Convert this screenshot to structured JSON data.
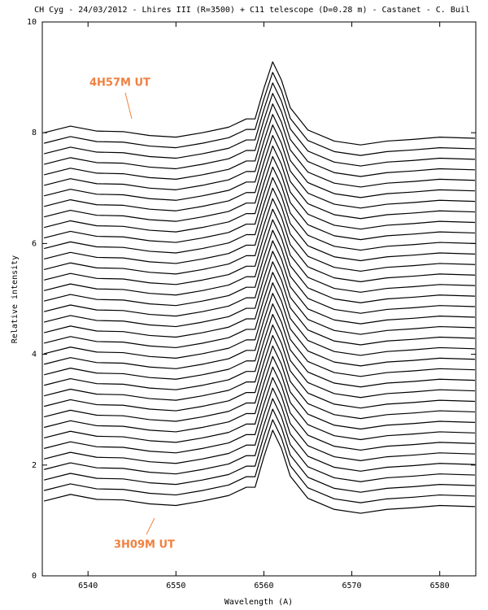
{
  "chart_data": {
    "type": "line",
    "title": "CH Cyg - 24/03/2012 - Lhires III (R=3500) + C11 telescope (D=0.28 m) - Castanet - C. Buil",
    "xlabel": "Wavelength (A)",
    "ylabel": "Relative intensity",
    "annotations": [
      "4H57M UT",
      "3H09M UT"
    ],
    "color": "#000000",
    "xlim": [
      6534.8,
      6584.1
    ],
    "ylim": [
      0,
      10
    ],
    "xticks": [
      6540,
      6550,
      6560,
      6570,
      6580
    ],
    "yticks": [
      0,
      2,
      4,
      6,
      8,
      10
    ],
    "x": [
      6535,
      6538,
      6541,
      6544,
      6547,
      6550,
      6553,
      6556,
      6558,
      6559,
      6560,
      6561,
      6562,
      6563,
      6565,
      6568,
      6571,
      6574,
      6577,
      6580,
      6584
    ],
    "series": [
      {
        "values": [
          1.35,
          1.47,
          1.38,
          1.37,
          1.3,
          1.27,
          1.35,
          1.45,
          1.6,
          1.6,
          2.15,
          2.63,
          2.3,
          1.8,
          1.4,
          1.2,
          1.13,
          1.2,
          1.23,
          1.27,
          1.25
        ]
      },
      {
        "values": [
          1.54,
          1.66,
          1.57,
          1.56,
          1.49,
          1.46,
          1.54,
          1.64,
          1.79,
          1.79,
          2.34,
          2.82,
          2.49,
          1.99,
          1.59,
          1.39,
          1.32,
          1.39,
          1.42,
          1.46,
          1.44
        ]
      },
      {
        "values": [
          1.73,
          1.85,
          1.76,
          1.75,
          1.68,
          1.65,
          1.73,
          1.83,
          1.98,
          1.98,
          2.53,
          3.01,
          2.68,
          2.18,
          1.78,
          1.58,
          1.51,
          1.58,
          1.61,
          1.65,
          1.63
        ]
      },
      {
        "values": [
          1.92,
          2.04,
          1.95,
          1.94,
          1.87,
          1.84,
          1.92,
          2.02,
          2.17,
          2.17,
          2.72,
          3.2,
          2.87,
          2.37,
          1.97,
          1.77,
          1.7,
          1.77,
          1.8,
          1.84,
          1.82
        ]
      },
      {
        "values": [
          2.11,
          2.23,
          2.14,
          2.13,
          2.06,
          2.03,
          2.11,
          2.21,
          2.36,
          2.36,
          2.91,
          3.39,
          3.06,
          2.56,
          2.16,
          1.96,
          1.89,
          1.96,
          1.99,
          2.03,
          2.01
        ]
      },
      {
        "values": [
          2.3,
          2.42,
          2.33,
          2.32,
          2.25,
          2.22,
          2.3,
          2.4,
          2.55,
          2.55,
          3.1,
          3.58,
          3.25,
          2.75,
          2.35,
          2.15,
          2.08,
          2.15,
          2.18,
          2.22,
          2.2
        ]
      },
      {
        "values": [
          2.49,
          2.61,
          2.52,
          2.51,
          2.44,
          2.41,
          2.49,
          2.59,
          2.74,
          2.74,
          3.29,
          3.77,
          3.44,
          2.94,
          2.54,
          2.34,
          2.27,
          2.34,
          2.37,
          2.41,
          2.39
        ]
      },
      {
        "values": [
          2.68,
          2.8,
          2.71,
          2.7,
          2.63,
          2.6,
          2.68,
          2.78,
          2.93,
          2.93,
          3.48,
          3.96,
          3.63,
          3.13,
          2.73,
          2.53,
          2.46,
          2.53,
          2.56,
          2.6,
          2.58
        ]
      },
      {
        "values": [
          2.87,
          2.99,
          2.9,
          2.89,
          2.82,
          2.79,
          2.87,
          2.97,
          3.12,
          3.12,
          3.67,
          4.15,
          3.82,
          3.32,
          2.92,
          2.72,
          2.65,
          2.72,
          2.75,
          2.79,
          2.77
        ]
      },
      {
        "values": [
          3.06,
          3.18,
          3.09,
          3.08,
          3.01,
          2.98,
          3.06,
          3.16,
          3.31,
          3.31,
          3.86,
          4.34,
          4.01,
          3.51,
          3.11,
          2.91,
          2.84,
          2.91,
          2.94,
          2.98,
          2.96
        ]
      },
      {
        "values": [
          3.25,
          3.37,
          3.28,
          3.27,
          3.2,
          3.17,
          3.25,
          3.35,
          3.5,
          3.5,
          4.05,
          4.53,
          4.2,
          3.7,
          3.3,
          3.1,
          3.03,
          3.1,
          3.13,
          3.17,
          3.15
        ]
      },
      {
        "values": [
          3.44,
          3.56,
          3.47,
          3.46,
          3.39,
          3.36,
          3.44,
          3.54,
          3.69,
          3.69,
          4.24,
          4.72,
          4.39,
          3.89,
          3.49,
          3.29,
          3.22,
          3.29,
          3.32,
          3.36,
          3.34
        ]
      },
      {
        "values": [
          3.63,
          3.75,
          3.66,
          3.65,
          3.58,
          3.55,
          3.63,
          3.73,
          3.88,
          3.88,
          4.43,
          4.91,
          4.58,
          4.08,
          3.68,
          3.48,
          3.41,
          3.48,
          3.51,
          3.55,
          3.53
        ]
      },
      {
        "values": [
          3.82,
          3.94,
          3.85,
          3.84,
          3.77,
          3.74,
          3.82,
          3.92,
          4.07,
          4.07,
          4.62,
          5.1,
          4.77,
          4.27,
          3.87,
          3.67,
          3.6,
          3.67,
          3.7,
          3.74,
          3.72
        ]
      },
      {
        "values": [
          4.01,
          4.13,
          4.04,
          4.03,
          3.96,
          3.93,
          4.01,
          4.11,
          4.26,
          4.26,
          4.81,
          5.29,
          4.96,
          4.46,
          4.06,
          3.86,
          3.79,
          3.86,
          3.89,
          3.93,
          3.91
        ]
      },
      {
        "values": [
          4.2,
          4.32,
          4.23,
          4.22,
          4.15,
          4.12,
          4.2,
          4.3,
          4.45,
          4.45,
          5.0,
          5.48,
          5.15,
          4.65,
          4.25,
          4.05,
          3.98,
          4.05,
          4.08,
          4.12,
          4.1
        ]
      },
      {
        "values": [
          4.39,
          4.51,
          4.42,
          4.41,
          4.34,
          4.31,
          4.39,
          4.49,
          4.64,
          4.64,
          5.19,
          5.67,
          5.34,
          4.84,
          4.44,
          4.24,
          4.17,
          4.24,
          4.27,
          4.31,
          4.29
        ]
      },
      {
        "values": [
          4.58,
          4.7,
          4.61,
          4.6,
          4.53,
          4.5,
          4.58,
          4.68,
          4.83,
          4.83,
          5.38,
          5.86,
          5.53,
          5.03,
          4.63,
          4.43,
          4.36,
          4.43,
          4.46,
          4.5,
          4.48
        ]
      },
      {
        "values": [
          4.77,
          4.89,
          4.8,
          4.79,
          4.72,
          4.69,
          4.77,
          4.87,
          5.02,
          5.02,
          5.57,
          6.05,
          5.72,
          5.22,
          4.82,
          4.62,
          4.55,
          4.62,
          4.65,
          4.69,
          4.67
        ]
      },
      {
        "values": [
          4.96,
          5.08,
          4.99,
          4.98,
          4.91,
          4.88,
          4.96,
          5.06,
          5.21,
          5.21,
          5.76,
          6.24,
          5.91,
          5.41,
          5.01,
          4.81,
          4.74,
          4.81,
          4.84,
          4.88,
          4.86
        ]
      },
      {
        "values": [
          5.15,
          5.27,
          5.18,
          5.17,
          5.1,
          5.07,
          5.15,
          5.25,
          5.4,
          5.4,
          5.95,
          6.43,
          6.1,
          5.6,
          5.2,
          5.0,
          4.93,
          5.0,
          5.03,
          5.07,
          5.05
        ]
      },
      {
        "values": [
          5.34,
          5.46,
          5.37,
          5.36,
          5.29,
          5.26,
          5.34,
          5.44,
          5.59,
          5.59,
          6.14,
          6.62,
          6.29,
          5.79,
          5.39,
          5.19,
          5.12,
          5.19,
          5.22,
          5.26,
          5.24
        ]
      },
      {
        "values": [
          5.53,
          5.65,
          5.56,
          5.55,
          5.48,
          5.45,
          5.53,
          5.63,
          5.78,
          5.78,
          6.33,
          6.81,
          6.48,
          5.98,
          5.58,
          5.38,
          5.31,
          5.38,
          5.41,
          5.45,
          5.43
        ]
      },
      {
        "values": [
          5.72,
          5.84,
          5.75,
          5.74,
          5.67,
          5.64,
          5.72,
          5.82,
          5.97,
          5.97,
          6.52,
          7.0,
          6.67,
          6.17,
          5.77,
          5.57,
          5.5,
          5.57,
          5.6,
          5.64,
          5.62
        ]
      },
      {
        "values": [
          5.91,
          6.03,
          5.94,
          5.93,
          5.86,
          5.83,
          5.91,
          6.01,
          6.16,
          6.16,
          6.71,
          7.19,
          6.86,
          6.36,
          5.96,
          5.76,
          5.69,
          5.76,
          5.79,
          5.83,
          5.81
        ]
      },
      {
        "values": [
          6.1,
          6.22,
          6.13,
          6.12,
          6.05,
          6.02,
          6.1,
          6.2,
          6.35,
          6.35,
          6.9,
          7.38,
          7.05,
          6.55,
          6.15,
          5.95,
          5.88,
          5.95,
          5.98,
          6.02,
          6.0
        ]
      },
      {
        "values": [
          6.29,
          6.41,
          6.32,
          6.31,
          6.24,
          6.21,
          6.29,
          6.39,
          6.54,
          6.54,
          7.09,
          7.57,
          7.24,
          6.74,
          6.34,
          6.14,
          6.07,
          6.14,
          6.17,
          6.21,
          6.19
        ]
      },
      {
        "values": [
          6.48,
          6.6,
          6.51,
          6.5,
          6.43,
          6.4,
          6.48,
          6.58,
          6.73,
          6.73,
          7.28,
          7.76,
          7.43,
          6.93,
          6.53,
          6.33,
          6.26,
          6.33,
          6.36,
          6.4,
          6.38
        ]
      },
      {
        "values": [
          6.67,
          6.79,
          6.7,
          6.69,
          6.62,
          6.59,
          6.67,
          6.77,
          6.92,
          6.92,
          7.47,
          7.95,
          7.62,
          7.12,
          6.72,
          6.52,
          6.45,
          6.52,
          6.55,
          6.59,
          6.57
        ]
      },
      {
        "values": [
          6.86,
          6.98,
          6.89,
          6.88,
          6.81,
          6.78,
          6.86,
          6.96,
          7.11,
          7.11,
          7.66,
          8.14,
          7.81,
          7.31,
          6.91,
          6.71,
          6.64,
          6.71,
          6.74,
          6.78,
          6.76
        ]
      },
      {
        "values": [
          7.05,
          7.17,
          7.08,
          7.07,
          7.0,
          6.97,
          7.05,
          7.15,
          7.3,
          7.3,
          7.85,
          8.33,
          8.0,
          7.5,
          7.1,
          6.9,
          6.83,
          6.9,
          6.93,
          6.97,
          6.95
        ]
      },
      {
        "values": [
          7.24,
          7.36,
          7.27,
          7.26,
          7.19,
          7.16,
          7.24,
          7.34,
          7.49,
          7.49,
          8.04,
          8.52,
          8.19,
          7.69,
          7.29,
          7.09,
          7.02,
          7.09,
          7.12,
          7.16,
          7.14
        ]
      },
      {
        "values": [
          7.43,
          7.55,
          7.46,
          7.45,
          7.38,
          7.35,
          7.43,
          7.53,
          7.68,
          7.68,
          8.23,
          8.71,
          8.38,
          7.88,
          7.48,
          7.28,
          7.21,
          7.28,
          7.31,
          7.35,
          7.33
        ]
      },
      {
        "values": [
          7.62,
          7.74,
          7.65,
          7.64,
          7.57,
          7.54,
          7.62,
          7.72,
          7.87,
          7.87,
          8.42,
          8.9,
          8.57,
          8.07,
          7.67,
          7.47,
          7.4,
          7.47,
          7.5,
          7.54,
          7.52
        ]
      },
      {
        "values": [
          7.81,
          7.93,
          7.84,
          7.83,
          7.76,
          7.73,
          7.81,
          7.91,
          8.06,
          8.06,
          8.61,
          9.09,
          8.76,
          8.26,
          7.86,
          7.66,
          7.59,
          7.66,
          7.69,
          7.73,
          7.71
        ]
      },
      {
        "values": [
          8.0,
          8.12,
          8.03,
          8.02,
          7.95,
          7.92,
          8.0,
          8.1,
          8.25,
          8.25,
          8.8,
          9.28,
          8.95,
          8.45,
          8.05,
          7.85,
          7.78,
          7.85,
          7.88,
          7.92,
          7.9
        ]
      }
    ]
  }
}
